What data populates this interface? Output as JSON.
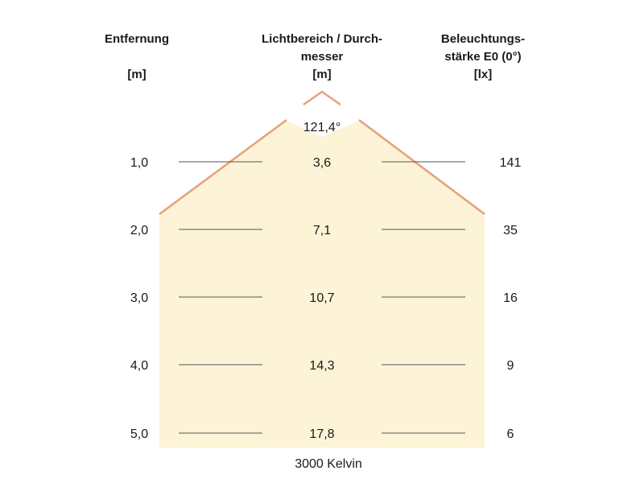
{
  "headers": {
    "distance_label": "Entfernung",
    "distance_unit": "[m]",
    "diameter_label_line1": "Lichtbereich / Durch-",
    "diameter_label_line2": "messer",
    "diameter_unit": "[m]",
    "illuminance_label_line1": "Beleuchtungs-",
    "illuminance_label_line2": "stärke E0 (0°)",
    "illuminance_unit": "[lx]"
  },
  "beam_angle": "121,4°",
  "footer": "3000 Kelvin",
  "rows": [
    {
      "distance": "1,0",
      "diameter": "3,6",
      "illuminance": "141"
    },
    {
      "distance": "2,0",
      "diameter": "7,1",
      "illuminance": "35"
    },
    {
      "distance": "3,0",
      "diameter": "10,7",
      "illuminance": "16"
    },
    {
      "distance": "4,0",
      "diameter": "14,3",
      "illuminance": "9"
    },
    {
      "distance": "5,0",
      "diameter": "17,8",
      "illuminance": "6"
    }
  ],
  "colors": {
    "beam_fill": "#fdf3d6",
    "beam_edge": "#e8a079",
    "row_line": "#555555"
  }
}
